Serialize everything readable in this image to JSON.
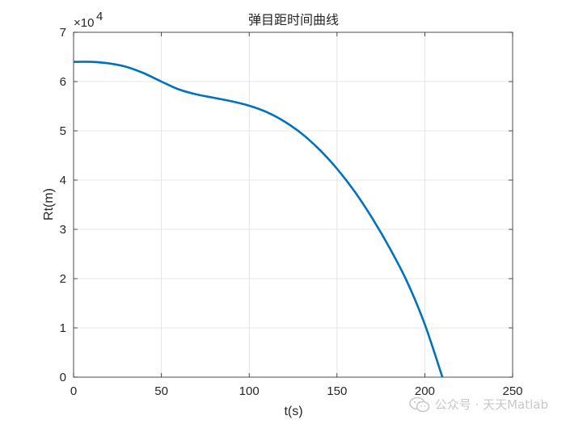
{
  "chart_data": {
    "type": "line",
    "title": "弹目距时间曲线",
    "xlabel": "t(s)",
    "ylabel": "Rt(m)",
    "xlim": [
      0,
      250
    ],
    "ylim": [
      0,
      7
    ],
    "xticks": [
      0,
      50,
      100,
      150,
      200,
      250
    ],
    "yticks": [
      0,
      1,
      2,
      3,
      4,
      5,
      6,
      7
    ],
    "y_multiplier_base": "×10",
    "y_multiplier_exp": "4",
    "grid": true,
    "series": [
      {
        "color": "#0072BD",
        "x": [
          0,
          10,
          20,
          30,
          40,
          50,
          60,
          70,
          80,
          90,
          100,
          110,
          120,
          130,
          140,
          150,
          160,
          170,
          180,
          190,
          200,
          210
        ],
        "y": [
          6.4,
          6.4,
          6.37,
          6.3,
          6.17,
          6.0,
          5.84,
          5.74,
          5.67,
          5.6,
          5.51,
          5.38,
          5.19,
          4.94,
          4.62,
          4.23,
          3.77,
          3.23,
          2.62,
          1.93,
          1.07,
          0.0
        ]
      }
    ]
  },
  "watermark": {
    "icon": "wechat-icon",
    "text": "公众号 · 天天Matlab"
  }
}
